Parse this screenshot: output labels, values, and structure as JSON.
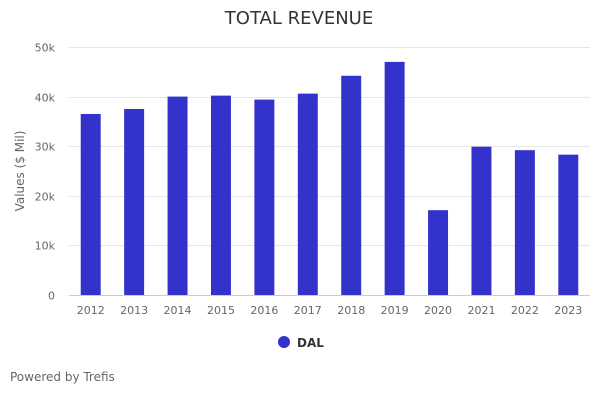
{
  "chart_data": {
    "type": "bar",
    "title": "TOTAL REVENUE",
    "xlabel": "",
    "ylabel": "Values ($ Mil)",
    "ylim": [
      0,
      50000
    ],
    "yticks": [
      0,
      10000,
      20000,
      30000,
      40000,
      50000
    ],
    "ytick_labels": [
      "0",
      "10k",
      "20k",
      "30k",
      "40k",
      "50k"
    ],
    "grid": true,
    "legend_position": "bottom-center",
    "categories": [
      "2012",
      "2013",
      "2014",
      "2015",
      "2016",
      "2017",
      "2018",
      "2019",
      "2020",
      "2021",
      "2022",
      "2023"
    ],
    "series": [
      {
        "name": "DAL",
        "color": "#3333cc",
        "values": [
          36500,
          37500,
          40000,
          40200,
          39400,
          40600,
          44200,
          47000,
          17100,
          29900,
          29200,
          28300
        ]
      }
    ]
  },
  "footer": {
    "credits": "Powered by Trefis"
  }
}
